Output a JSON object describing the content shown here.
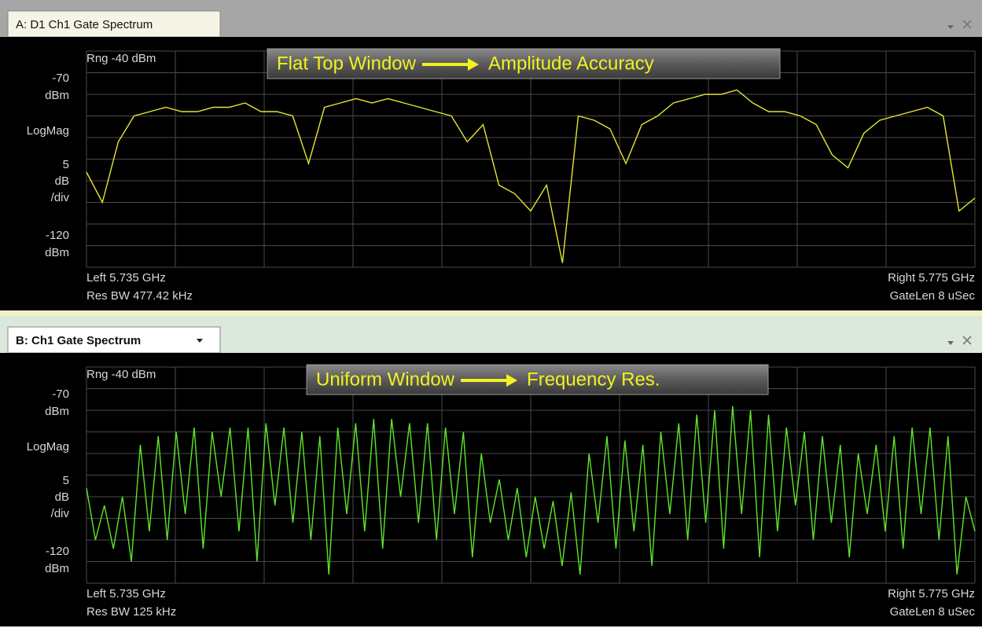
{
  "panels": [
    {
      "tab": "A: D1 Ch1 Gate Spectrum",
      "range_label": "Rng -40 dBm",
      "annotation": {
        "left": "Flat Top Window",
        "right": "Amplitude Accuracy"
      },
      "ylim": [
        -120,
        -70
      ],
      "y_unit": "dBm",
      "format": "LogMag",
      "scale_per_div": 5,
      "scale_unit": "dB",
      "per_div": "/div",
      "left_freq": "Left 5.735 GHz",
      "res_bw": "Res BW 477.42 kHz",
      "right_freq": "Right 5.775 GHz",
      "gate_len": "GateLen 8 uSec",
      "trace_color": "#e6e632",
      "values": [
        -98,
        -105,
        -91,
        -85,
        -84,
        -83,
        -84,
        -84,
        -83,
        -83,
        -82,
        -84,
        -84,
        -85,
        -96,
        -83,
        -82,
        -81,
        -82,
        -81,
        -82,
        -83,
        -84,
        -85,
        -91,
        -87,
        -101,
        -103,
        -107,
        -101,
        -119,
        -85,
        -86,
        -88,
        -96,
        -87,
        -85,
        -82,
        -81,
        -80,
        -80,
        -79,
        -82,
        -84,
        -84,
        -85,
        -87,
        -94,
        -97,
        -89,
        -86,
        -85,
        -84,
        -83,
        -85,
        -107,
        -104
      ]
    },
    {
      "tab": "B: Ch1 Gate Spectrum",
      "range_label": "Rng -40 dBm",
      "annotation": {
        "left": "Uniform Window",
        "right": "Frequency Res."
      },
      "ylim": [
        -120,
        -70
      ],
      "y_unit": "dBm",
      "format": "LogMag",
      "scale_per_div": 5,
      "scale_unit": "dB",
      "per_div": "/div",
      "left_freq": "Left 5.735 GHz",
      "res_bw": "Res BW 125 kHz",
      "right_freq": "Right 5.775 GHz",
      "gate_len": "GateLen 8 uSec",
      "trace_color": "#5ee62a",
      "values": [
        -98,
        -110,
        -102,
        -112,
        -100,
        -115,
        -88,
        -108,
        -86,
        -110,
        -85,
        -104,
        -84,
        -112,
        -85,
        -100,
        -84,
        -108,
        -84,
        -115,
        -83,
        -102,
        -84,
        -106,
        -85,
        -110,
        -86,
        -118,
        -84,
        -104,
        -83,
        -108,
        -82,
        -112,
        -82,
        -100,
        -83,
        -106,
        -83,
        -110,
        -84,
        -104,
        -85,
        -114,
        -90,
        -106,
        -96,
        -110,
        -98,
        -114,
        -100,
        -112,
        -101,
        -116,
        -99,
        -118,
        -90,
        -106,
        -86,
        -112,
        -87,
        -108,
        -88,
        -116,
        -85,
        -104,
        -83,
        -110,
        -81,
        -106,
        -80,
        -112,
        -79,
        -104,
        -80,
        -114,
        -81,
        -108,
        -84,
        -102,
        -85,
        -110,
        -86,
        -106,
        -88,
        -114,
        -90,
        -104,
        -88,
        -108,
        -86,
        -112,
        -84,
        -104,
        -84,
        -110,
        -86,
        -118,
        -100,
        -108
      ]
    }
  ]
}
